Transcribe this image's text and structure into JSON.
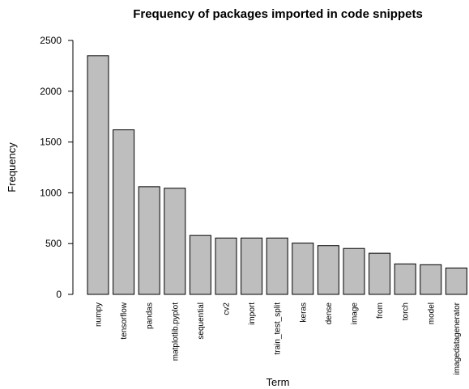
{
  "chart_data": {
    "type": "bar",
    "title": "Frequency of packages imported in code snippets",
    "xlabel": "Term",
    "ylabel": "Frequency",
    "ylim": [
      0,
      2500
    ],
    "yticks": [
      0,
      500,
      1000,
      1500,
      2000,
      2500
    ],
    "categories": [
      "numpy",
      "tensorflow",
      "pandas",
      "matplotlib.pyplot",
      "sequential",
      "cv2",
      "import",
      "train_test_split",
      "keras",
      "dense",
      "image",
      "from",
      "torch",
      "model",
      "imagedatagenerator"
    ],
    "values": [
      2350,
      1620,
      1060,
      1045,
      580,
      555,
      555,
      555,
      505,
      480,
      452,
      405,
      300,
      292,
      260
    ],
    "bar_color": "#bebebe",
    "grid": false,
    "legend": "none"
  }
}
